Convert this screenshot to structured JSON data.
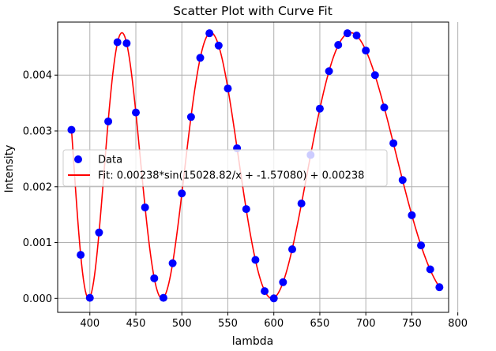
{
  "chart_data": {
    "type": "scatter",
    "title": "Scatter Plot with Curve Fit",
    "xlabel": "lambda",
    "ylabel": "Intensity",
    "xlim": [
      365,
      790
    ],
    "ylim": [
      -0.00025,
      0.00495
    ],
    "grid": true,
    "legend_position": "center-left",
    "x_ticks": [
      400,
      450,
      500,
      550,
      600,
      650,
      700,
      750,
      800
    ],
    "y_ticks": [
      0.0,
      0.001,
      0.002,
      0.003,
      0.004
    ],
    "x_tick_labels": [
      "400",
      "450",
      "500",
      "550",
      "600",
      "650",
      "700",
      "750",
      "800"
    ],
    "y_tick_labels": [
      "0.000",
      "0.001",
      "0.002",
      "0.003",
      "0.004"
    ],
    "series": [
      {
        "name": "Data",
        "kind": "scatter",
        "color": "#0000ff",
        "x": [
          380,
          390,
          400,
          410,
          420,
          430,
          440,
          450,
          460,
          470,
          480,
          490,
          500,
          510,
          520,
          530,
          540,
          550,
          560,
          570,
          580,
          590,
          600,
          610,
          620,
          630,
          640,
          650,
          660,
          670,
          680,
          690,
          700,
          710,
          720,
          730,
          740,
          750,
          760,
          770,
          780
        ],
        "y": [
          0.00302,
          0.00078,
          1e-05,
          0.00118,
          0.00317,
          0.00459,
          0.00457,
          0.00333,
          0.00163,
          0.00036,
          1e-05,
          0.00063,
          0.00188,
          0.00325,
          0.00431,
          0.00475,
          0.00453,
          0.00376,
          0.00269,
          0.0016,
          0.00069,
          0.00013,
          0.0,
          0.00029,
          0.00088,
          0.0017,
          0.00257,
          0.0034,
          0.00407,
          0.00454,
          0.00475,
          0.00471,
          0.00444,
          0.004,
          0.00342,
          0.00278,
          0.00212,
          0.00149,
          0.00095,
          0.00052,
          0.0002
        ]
      },
      {
        "name": "Fit: 0.00238*sin(15028.82/x + -1.57080) + 0.00238",
        "kind": "line",
        "color": "#ff0000",
        "amplitude": 0.00238,
        "frequency": 15028.82,
        "phase": -1.5708,
        "offset": 0.00238,
        "x_range": [
          380,
          780
        ]
      }
    ]
  }
}
